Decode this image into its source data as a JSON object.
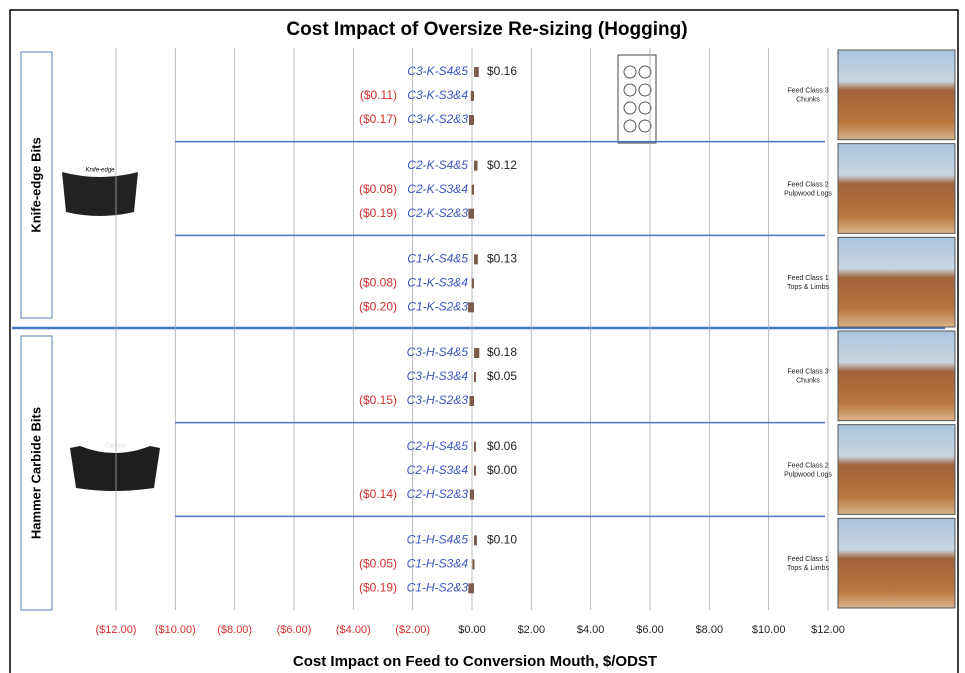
{
  "chart_data": {
    "type": "barh",
    "title": "Cost Impact of Oversize Re-sizing (Hogging)",
    "xlabel": "Cost Impact on Feed to Conversion Mouth, $/ODST",
    "categories": [
      "C3-K-S4&5",
      "C3-K-S3&4",
      "C3-K-S2&3",
      "C2-K-S4&5",
      "C2-K-S3&4",
      "C2-K-S2&3",
      "C1-K-S4&5",
      "C1-K-S3&4",
      "C1-K-S2&3",
      "C3-H-S4&5",
      "C3-H-S3&4",
      "C3-H-S2&3",
      "C2-H-S4&5",
      "C2-H-S3&4",
      "C2-H-S2&3",
      "C1-H-S4&5",
      "C1-H-S3&4",
      "C1-H-S2&3"
    ],
    "values": [
      0.16,
      -0.11,
      -0.17,
      0.12,
      -0.08,
      -0.19,
      0.13,
      -0.08,
      -0.2,
      0.18,
      0.05,
      -0.15,
      0.06,
      0.0,
      -0.14,
      0.1,
      -0.05,
      -0.19
    ],
    "value_labels": [
      "$0.16",
      "($0.11)",
      "($0.17)",
      "$0.12",
      "($0.08)",
      "($0.19)",
      "$0.13",
      "($0.08)",
      "($0.20)",
      "$0.18",
      "$0.05",
      "($0.15)",
      "$0.06",
      "$0.00",
      "($0.14)",
      "$0.10",
      "($0.05)",
      "($0.19)"
    ],
    "color": "#7b5b4b",
    "xlim": [
      -12,
      12
    ],
    "xticks": [
      {
        "value": -12,
        "label": "($12.00)"
      },
      {
        "value": -10,
        "label": "($10.00)"
      },
      {
        "value": -8,
        "label": "($8.00)"
      },
      {
        "value": -6,
        "label": "($6.00)"
      },
      {
        "value": -4,
        "label": "($4.00)"
      },
      {
        "value": -2,
        "label": "($2.00)"
      },
      {
        "value": 0,
        "label": "$0.00"
      },
      {
        "value": 2,
        "label": "$2.00"
      },
      {
        "value": 4,
        "label": "$4.00"
      },
      {
        "value": 6,
        "label": "$6.00"
      },
      {
        "value": 8,
        "label": "$8.00"
      },
      {
        "value": 10,
        "label": "$10.00"
      },
      {
        "value": 12,
        "label": "$12.00"
      }
    ],
    "grid": true,
    "groups": [
      "Knife-edge Bits",
      "Hammer Carbide Bits"
    ],
    "bit_captions": [
      "Knife-edge",
      "Carbide"
    ],
    "feed_labels": [
      [
        "Feed Class 3",
        "Chunks"
      ],
      [
        "Feed Class 2",
        "Pulpwood Logs"
      ],
      [
        "Feed Class 1",
        "Tops & Limbs"
      ],
      [
        "Feed Class 3",
        "Chunks"
      ],
      [
        "Feed Class 2",
        "Pulpwood Logs"
      ],
      [
        "Feed Class 1",
        "Tops & Limbs"
      ]
    ]
  }
}
